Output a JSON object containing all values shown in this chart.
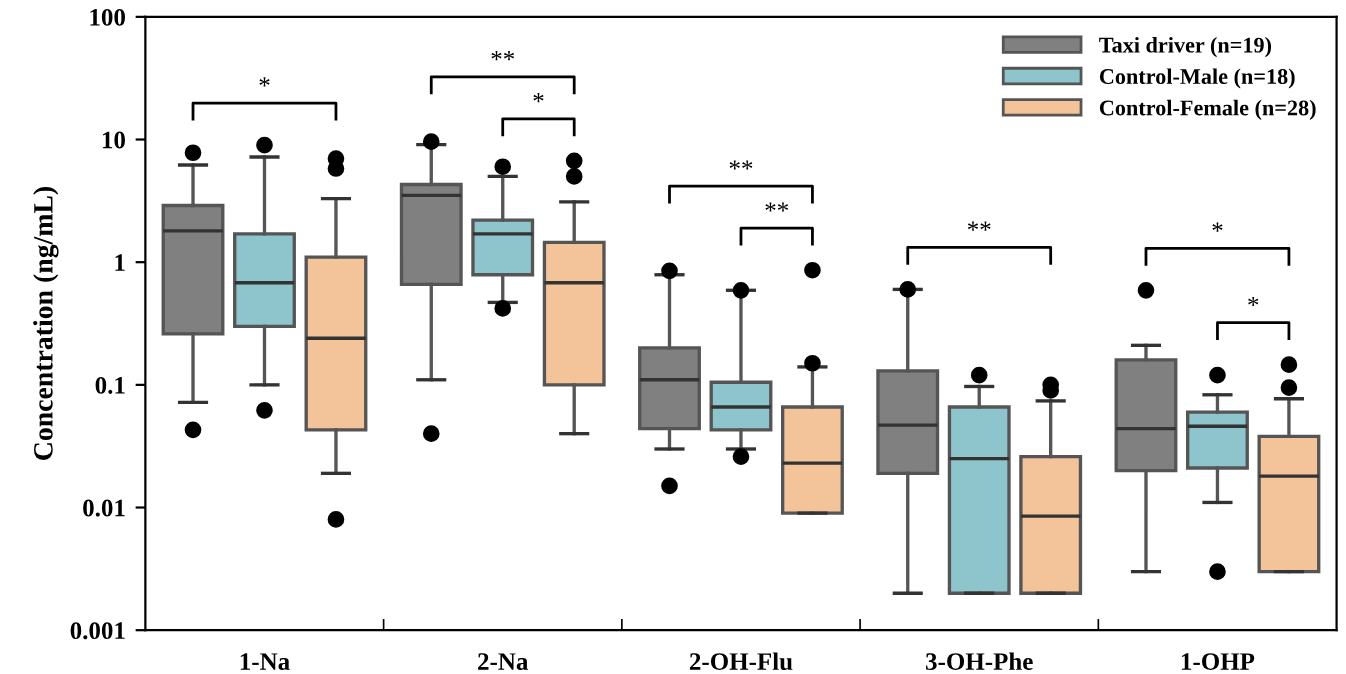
{
  "chart_data": {
    "type": "box",
    "ylabel": "Concentration (ng/mL)",
    "categories": [
      "1-Na",
      "2-Na",
      "2-OH-Flu",
      "3-OH-Phe",
      "1-OHP"
    ],
    "log": true,
    "ylim": [
      0.001,
      100
    ],
    "yticks": [
      0.001,
      0.01,
      0.1,
      1,
      10,
      100
    ],
    "grid": false,
    "legend": "top right",
    "series": [
      {
        "name": "Taxi driver (n=19)",
        "color": "#808080",
        "boxes": [
          {
            "low": 0.072,
            "q1": 0.26,
            "median": 1.8,
            "q3": 2.9,
            "high": 6.2,
            "outliers": [
              7.8,
              0.043
            ]
          },
          {
            "low": 0.11,
            "q1": 0.66,
            "median": 3.5,
            "q3": 4.3,
            "high": 9.1,
            "outliers": [
              9.6,
              0.04
            ]
          },
          {
            "low": 0.03,
            "q1": 0.044,
            "median": 0.11,
            "q3": 0.2,
            "high": 0.79,
            "outliers": [
              0.85,
              0.015
            ]
          },
          {
            "low": 0.002,
            "q1": 0.019,
            "median": 0.047,
            "q3": 0.13,
            "high": 0.6,
            "outliers": [
              0.6
            ]
          },
          {
            "low": 0.003,
            "q1": 0.02,
            "median": 0.044,
            "q3": 0.16,
            "high": 0.21,
            "outliers": [
              0.59
            ]
          }
        ]
      },
      {
        "name": "Control-Male (n=18)",
        "color": "#8ec5cc",
        "boxes": [
          {
            "low": 0.1,
            "q1": 0.3,
            "median": 0.68,
            "q3": 1.7,
            "high": 7.2,
            "outliers": [
              9.0,
              0.062
            ]
          },
          {
            "low": 0.47,
            "q1": 0.79,
            "median": 1.7,
            "q3": 2.2,
            "high": 5.0,
            "outliers": [
              6.0,
              0.42
            ]
          },
          {
            "low": 0.03,
            "q1": 0.043,
            "median": 0.066,
            "q3": 0.105,
            "high": 0.59,
            "outliers": [
              0.59,
              0.026
            ]
          },
          {
            "low": 0.002,
            "q1": 0.002,
            "median": 0.025,
            "q3": 0.066,
            "high": 0.097,
            "outliers": [
              0.12
            ]
          },
          {
            "low": 0.011,
            "q1": 0.021,
            "median": 0.046,
            "q3": 0.06,
            "high": 0.083,
            "outliers": [
              0.12,
              0.003
            ]
          }
        ]
      },
      {
        "name": "Control-Female (n=28)",
        "color": "#f3c39a",
        "boxes": [
          {
            "low": 0.019,
            "q1": 0.043,
            "median": 0.24,
            "q3": 1.1,
            "high": 3.3,
            "outliers": [
              7.0,
              5.8,
              0.008
            ]
          },
          {
            "low": 0.04,
            "q1": 0.1,
            "median": 0.68,
            "q3": 1.45,
            "high": 3.1,
            "outliers": [
              6.7,
              5.0
            ]
          },
          {
            "low": 0.009,
            "q1": 0.009,
            "median": 0.023,
            "q3": 0.066,
            "high": 0.14,
            "outliers": [
              0.86,
              0.15
            ]
          },
          {
            "low": 0.002,
            "q1": 0.002,
            "median": 0.0085,
            "q3": 0.026,
            "high": 0.074,
            "outliers": [
              0.1,
              0.09
            ]
          },
          {
            "low": 0.003,
            "q1": 0.003,
            "median": 0.018,
            "q3": 0.038,
            "high": 0.077,
            "outliers": [
              0.146,
              0.095
            ]
          }
        ]
      }
    ],
    "annotations": [
      "*",
      "**",
      "*",
      "**",
      "**",
      "**",
      "*",
      "*"
    ]
  }
}
